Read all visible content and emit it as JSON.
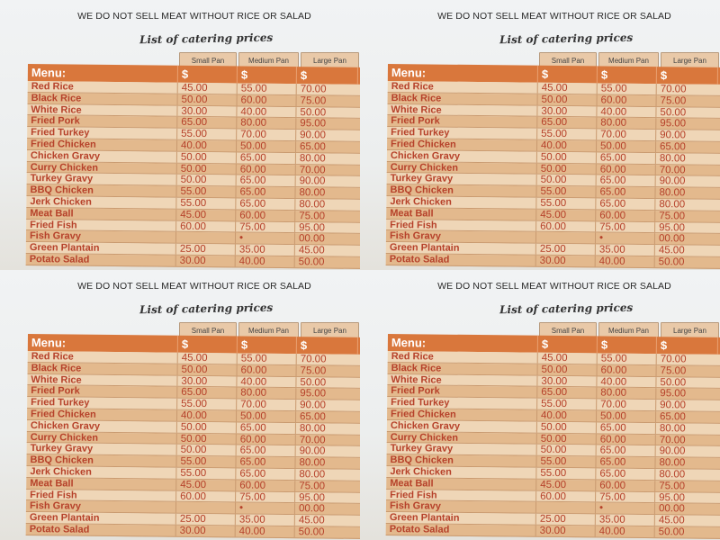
{
  "notice": "WE DO NOT SELL MEAT WITHOUT RICE OR SALAD",
  "title": "List of catering prices",
  "pans": [
    "Small Pan",
    "Medium Pan",
    "Large Pan"
  ],
  "header": {
    "menu": "Menu:",
    "currency": "$"
  },
  "items": [
    {
      "name": "Red Rice",
      "small": "45.00",
      "medium": "55.00",
      "large": "70.00"
    },
    {
      "name": "Black Rice",
      "small": "50.00",
      "medium": "60.00",
      "large": "75.00"
    },
    {
      "name": "White Rice",
      "small": "30.00",
      "medium": "40.00",
      "large": "50.00"
    },
    {
      "name": "Fried Pork",
      "small": "65.00",
      "medium": "80.00",
      "large": "95.00"
    },
    {
      "name": "Fried Turkey",
      "small": "55.00",
      "medium": "70.00",
      "large": "90.00"
    },
    {
      "name": "Fried Chicken",
      "small": "40.00",
      "medium": "50.00",
      "large": "65.00"
    },
    {
      "name": "Chicken Gravy",
      "small": "50.00",
      "medium": "65.00",
      "large": "80.00"
    },
    {
      "name": "Curry Chicken",
      "small": "50.00",
      "medium": "60.00",
      "large": "70.00"
    },
    {
      "name": "Turkey Gravy",
      "small": "50.00",
      "medium": "65.00",
      "large": "90.00"
    },
    {
      "name": "BBQ Chicken",
      "small": "55.00",
      "medium": "65.00",
      "large": "80.00"
    },
    {
      "name": "Jerk Chicken",
      "small": "55.00",
      "medium": "65.00",
      "large": "80.00"
    },
    {
      "name": "Meat Ball",
      "small": "45.00",
      "medium": "60.00",
      "large": "75.00"
    },
    {
      "name": "Fried Fish",
      "small": "60.00",
      "medium": "75.00",
      "large": "95.00"
    },
    {
      "name": "Fish Gravy",
      "small": "",
      "medium": "•",
      "large": "00.00"
    },
    {
      "name": "Green Plantain",
      "small": "25.00",
      "medium": "35.00",
      "large": "45.00"
    },
    {
      "name": "Potato Salad",
      "small": "30.00",
      "medium": "40.00",
      "large": "50.00"
    }
  ]
}
